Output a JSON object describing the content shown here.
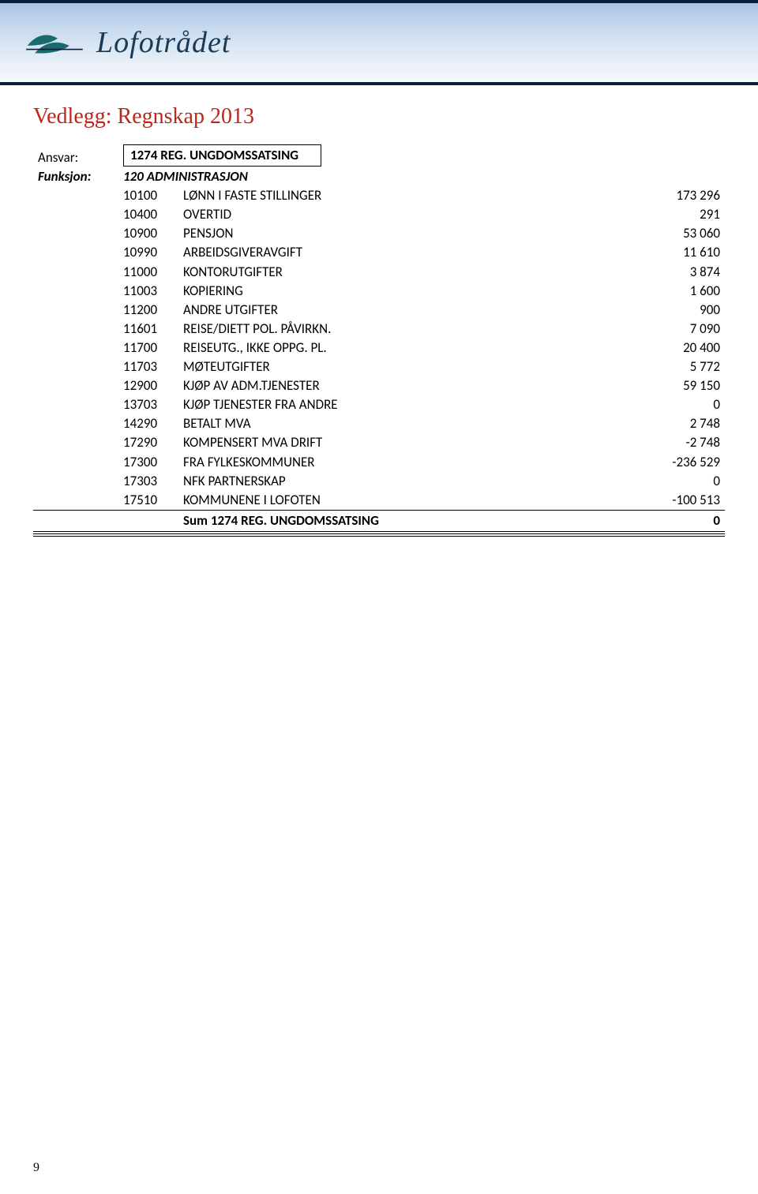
{
  "header": {
    "brand_text": "Lofotrådet",
    "top_line_color": "#0b1f3a",
    "logo_fill": "#1a6b6d",
    "logo_text_color": "#1a3b57"
  },
  "title": "Vedlegg: Regnskap 2013",
  "title_color": "#bb271a",
  "ansvar": {
    "label": "Ansvar:",
    "value": "1274 REG. UNGDOMSSATSING"
  },
  "funksjon": {
    "label": "Funksjon:",
    "value": "120 ADMINISTRASJON"
  },
  "rows": [
    {
      "code": "10100",
      "desc": "LØNN I FASTE STILLINGER",
      "value": "173 296"
    },
    {
      "code": "10400",
      "desc": "OVERTID",
      "value": "291"
    },
    {
      "code": "10900",
      "desc": "PENSJON",
      "value": "53 060"
    },
    {
      "code": "10990",
      "desc": "ARBEIDSGIVERAVGIFT",
      "value": "11 610"
    },
    {
      "code": "11000",
      "desc": "KONTORUTGIFTER",
      "value": "3 874"
    },
    {
      "code": "11003",
      "desc": "KOPIERING",
      "value": "1 600"
    },
    {
      "code": "11200",
      "desc": "ANDRE UTGIFTER",
      "value": "900"
    },
    {
      "code": "11601",
      "desc": "REISE/DIETT POL. PÅVIRKN.",
      "value": "7 090"
    },
    {
      "code": "11700",
      "desc": "REISEUTG., IKKE OPPG. PL.",
      "value": "20 400"
    },
    {
      "code": "11703",
      "desc": "MØTEUTGIFTER",
      "value": "5 772"
    },
    {
      "code": "12900",
      "desc": "KJØP AV ADM.TJENESTER",
      "value": "59 150"
    },
    {
      "code": "13703",
      "desc": "KJØP TJENESTER FRA ANDRE",
      "value": "0"
    },
    {
      "code": "14290",
      "desc": "BETALT MVA",
      "value": "2 748"
    },
    {
      "code": "17290",
      "desc": "KOMPENSERT MVA DRIFT",
      "value": "-2 748"
    },
    {
      "code": "17300",
      "desc": "FRA FYLKESKOMMUNER",
      "value": "-236 529"
    },
    {
      "code": "17303",
      "desc": "NFK PARTNERSKAP",
      "value": "0"
    },
    {
      "code": "17510",
      "desc": "KOMMUNENE I LOFOTEN",
      "value": "-100 513"
    }
  ],
  "sum": {
    "label": "Sum 1274 REG. UNGDOMSSATSING",
    "value": "0"
  },
  "page_number": "9"
}
